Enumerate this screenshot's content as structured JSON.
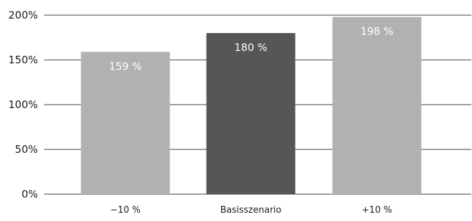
{
  "chart_data": {
    "type": "bar",
    "categories": [
      "−10 %",
      "Basisszenario",
      "+10 %"
    ],
    "values": [
      159,
      180,
      198
    ],
    "data_labels": [
      "159 %",
      "180 %",
      "198 %"
    ],
    "bar_colors": [
      "#b1b1b1",
      "#565655",
      "#b1b1b1"
    ],
    "ylim": [
      0,
      200
    ],
    "yticks": [
      0,
      50,
      100,
      150,
      200
    ],
    "ytick_labels": [
      "0%",
      "50%",
      "100%",
      "150%",
      "200%"
    ],
    "title": "",
    "xlabel": "",
    "ylabel": "",
    "grid": true,
    "gridline_color": "#3a3a3a",
    "legend": "none"
  }
}
